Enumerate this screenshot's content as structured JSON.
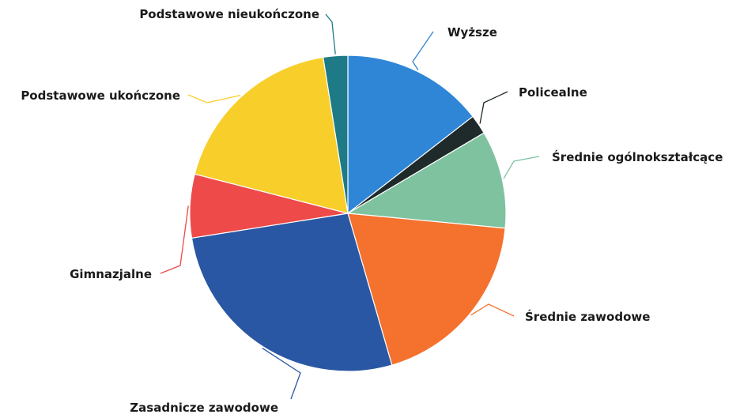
{
  "chart_data": {
    "type": "pie",
    "title": "",
    "legend": "none",
    "slices": [
      {
        "label": "Wyższe",
        "value": 14.5,
        "color": "#2f86d6"
      },
      {
        "label": "Policealne",
        "value": 2.0,
        "color": "#1f2a2a"
      },
      {
        "label": "Średnie ogólnokształcące",
        "value": 10.0,
        "color": "#7fc2a0"
      },
      {
        "label": "Średnie zawodowe",
        "value": 19.0,
        "color": "#f5712e"
      },
      {
        "label": "Zasadnicze zawodowe",
        "value": 27.0,
        "color": "#2a57a3"
      },
      {
        "label": "Gimnazjalne",
        "value": 6.5,
        "color": "#ee4a4a"
      },
      {
        "label": "Podstawowe ukończone",
        "value": 18.5,
        "color": "#f8cf2a"
      },
      {
        "label": "Podstawowe nieukończone",
        "value": 2.5,
        "color": "#1d7a86"
      }
    ]
  }
}
